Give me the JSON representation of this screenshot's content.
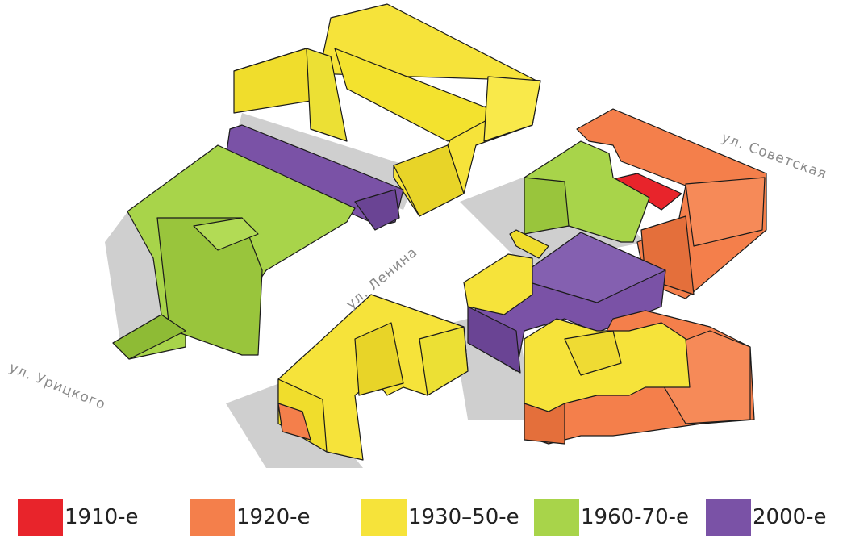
{
  "streets": {
    "sovetskaya": "ул. Советская",
    "lenina": "ул. Ленина",
    "uritskogo": "ул. Урицкого"
  },
  "legend": [
    {
      "label": "1910-е",
      "color": "#e8242b"
    },
    {
      "label": "1920-е",
      "color": "#f47f4b"
    },
    {
      "label": "1930–50-е",
      "color": "#f6e33a"
    },
    {
      "label": "1960-70-е",
      "color": "#a8d44a"
    },
    {
      "label": "2000-е",
      "color": "#7a52a6"
    }
  ],
  "colors": {
    "1910": "#e8242b",
    "1920": "#f47f4b",
    "1930": "#f6e33a",
    "1960": "#a8d44a",
    "2000": "#7a52a6",
    "shadow": "#cfcfcf"
  }
}
